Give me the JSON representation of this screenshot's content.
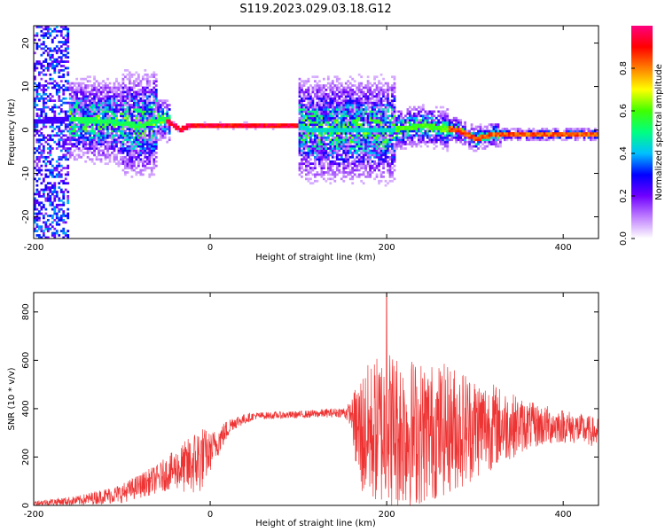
{
  "title": "S119.2023.029.03.18.G12",
  "chart_data": [
    {
      "type": "heatmap",
      "xlabel": "Height of straight line (km)",
      "ylabel": "Frequency (Hz)",
      "xlim": [
        -200,
        440
      ],
      "ylim": [
        -25,
        24
      ],
      "xticks": [
        -200,
        0,
        200,
        400
      ],
      "yticks": [
        -20,
        -10,
        0,
        10,
        20
      ],
      "colorbar": {
        "label": "Normalized spectral amplitude",
        "range": [
          0,
          1
        ],
        "ticks": [
          "0.0",
          "0.2",
          "0.4",
          "0.6",
          "0.8"
        ],
        "colors": [
          "#ffffff",
          "#c080ff",
          "#7000ff",
          "#0000ff",
          "#00c0ff",
          "#00ff80",
          "#40ff00",
          "#ffff00",
          "#ff8000",
          "#ff0000",
          "#ff0080"
        ]
      },
      "ridge": [
        {
          "x": -200,
          "y": 2
        },
        {
          "x": -160,
          "y": 2.5
        },
        {
          "x": -120,
          "y": 2
        },
        {
          "x": -80,
          "y": 1
        },
        {
          "x": -55,
          "y": 2.5
        },
        {
          "x": -45,
          "y": 1.5
        },
        {
          "x": -35,
          "y": 0
        },
        {
          "x": -25,
          "y": 1
        },
        {
          "x": 0,
          "y": 1
        },
        {
          "x": 60,
          "y": 1
        },
        {
          "x": 100,
          "y": 1
        },
        {
          "x": 110,
          "y": 0
        },
        {
          "x": 150,
          "y": 0
        },
        {
          "x": 200,
          "y": 0
        },
        {
          "x": 240,
          "y": 1
        },
        {
          "x": 280,
          "y": 0
        },
        {
          "x": 300,
          "y": -2
        },
        {
          "x": 320,
          "y": -1
        },
        {
          "x": 360,
          "y": -1
        },
        {
          "x": 400,
          "y": -1
        },
        {
          "x": 440,
          "y": -1
        }
      ]
    },
    {
      "type": "line",
      "xlabel": "Height of straight line (km)",
      "ylabel": "SNR (10 * v/v)",
      "xlim": [
        -200,
        440
      ],
      "ylim": [
        0,
        880
      ],
      "xticks": [
        -200,
        0,
        200,
        400
      ],
      "yticks": [
        0,
        200,
        400,
        600,
        800
      ],
      "series": [
        {
          "color": "#ee3333",
          "envelope": [
            {
              "x": -200,
              "mid": 10,
              "amp": 10
            },
            {
              "x": -150,
              "mid": 20,
              "amp": 20
            },
            {
              "x": -100,
              "mid": 50,
              "amp": 40
            },
            {
              "x": -60,
              "mid": 110,
              "amp": 60
            },
            {
              "x": -40,
              "mid": 150,
              "amp": 80
            },
            {
              "x": -25,
              "mid": 160,
              "amp": 120
            },
            {
              "x": -12,
              "mid": 190,
              "amp": 150
            },
            {
              "x": 0,
              "mid": 220,
              "amp": 80
            },
            {
              "x": 10,
              "mid": 270,
              "amp": 60
            },
            {
              "x": 25,
              "mid": 340,
              "amp": 30
            },
            {
              "x": 50,
              "mid": 370,
              "amp": 15
            },
            {
              "x": 100,
              "mid": 375,
              "amp": 15
            },
            {
              "x": 150,
              "mid": 385,
              "amp": 20
            },
            {
              "x": 160,
              "mid": 380,
              "amp": 50
            },
            {
              "x": 168,
              "mid": 290,
              "amp": 260
            },
            {
              "x": 200,
              "mid": 320,
              "amp": 340
            },
            {
              "x": 240,
              "mid": 300,
              "amp": 300
            },
            {
              "x": 280,
              "mid": 320,
              "amp": 260
            },
            {
              "x": 320,
              "mid": 330,
              "amp": 180
            },
            {
              "x": 360,
              "mid": 330,
              "amp": 100
            },
            {
              "x": 400,
              "mid": 330,
              "amp": 70
            },
            {
              "x": 440,
              "mid": 300,
              "amp": 60
            }
          ],
          "peak": {
            "x": 200,
            "y": 880
          }
        }
      ]
    }
  ]
}
